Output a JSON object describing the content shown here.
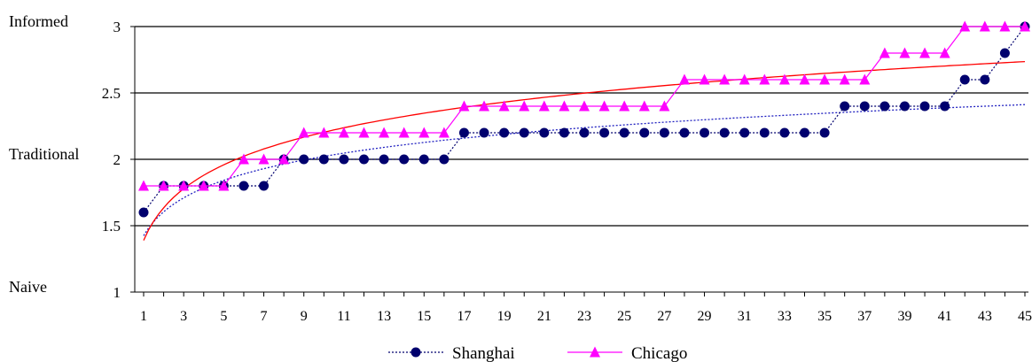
{
  "chart_data": {
    "type": "line",
    "title": "",
    "xlabel": "",
    "ylabel": "",
    "ylim": [
      1,
      3
    ],
    "xlim": [
      1,
      45
    ],
    "yticks": [
      "1",
      "1.5",
      "2",
      "2.5",
      "3"
    ],
    "xticks": [
      "1",
      "3",
      "5",
      "7",
      "9",
      "11",
      "13",
      "15",
      "17",
      "19",
      "21",
      "23",
      "25",
      "27",
      "29",
      "31",
      "33",
      "35",
      "37",
      "39",
      "41",
      "43",
      "45"
    ],
    "category_labels": [
      {
        "label": "Informed",
        "y": 3
      },
      {
        "label": "Traditional",
        "y": 2
      },
      {
        "label": "Naive",
        "y": 1
      }
    ],
    "grid": "horizontal",
    "legend_position": "bottom",
    "x": [
      1,
      2,
      3,
      4,
      5,
      6,
      7,
      8,
      9,
      10,
      11,
      12,
      13,
      14,
      15,
      16,
      17,
      18,
      19,
      20,
      21,
      22,
      23,
      24,
      25,
      26,
      27,
      28,
      29,
      30,
      31,
      32,
      33,
      34,
      35,
      36,
      37,
      38,
      39,
      40,
      41,
      42,
      43,
      44,
      45
    ],
    "series": [
      {
        "name": "Shanghai",
        "color": "#00006e",
        "trend_color": "#2020c0",
        "marker": "circle",
        "line_style": "dashed",
        "values": [
          1.6,
          1.8,
          1.8,
          1.8,
          1.8,
          1.8,
          1.8,
          2,
          2,
          2,
          2,
          2,
          2,
          2,
          2,
          2,
          2.2,
          2.2,
          2.2,
          2.2,
          2.2,
          2.2,
          2.2,
          2.2,
          2.2,
          2.2,
          2.2,
          2.2,
          2.2,
          2.2,
          2.2,
          2.2,
          2.2,
          2.2,
          2.2,
          2.4,
          2.4,
          2.4,
          2.4,
          2.4,
          2.4,
          2.6,
          2.6,
          2.8,
          3
        ]
      },
      {
        "name": "Chicago",
        "color": "#ff00ff",
        "trend_color": "#ff0000",
        "marker": "triangle",
        "line_style": "solid",
        "values": [
          1.8,
          1.8,
          1.8,
          1.8,
          1.8,
          2,
          2,
          2,
          2.2,
          2.2,
          2.2,
          2.2,
          2.2,
          2.2,
          2.2,
          2.2,
          2.4,
          2.4,
          2.4,
          2.4,
          2.4,
          2.4,
          2.4,
          2.4,
          2.4,
          2.4,
          2.4,
          2.6,
          2.6,
          2.6,
          2.6,
          2.6,
          2.6,
          2.6,
          2.6,
          2.6,
          2.6,
          2.8,
          2.8,
          2.8,
          2.8,
          3,
          3,
          3,
          3
        ]
      }
    ]
  }
}
